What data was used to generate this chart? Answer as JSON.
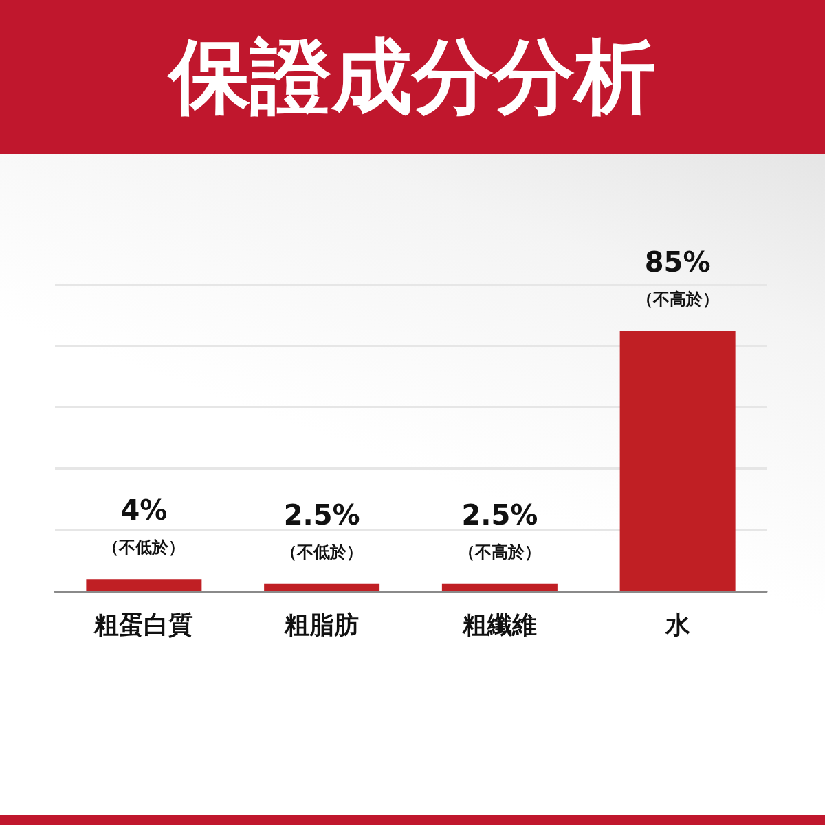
{
  "chart_data": {
    "type": "bar",
    "title": "保證成分分析",
    "categories": [
      "粗蛋白質",
      "粗脂肪",
      "粗纖維",
      "水"
    ],
    "values": [
      4,
      2.5,
      2.5,
      85
    ],
    "color": "#c01f24",
    "value_labels": [
      "4%",
      "2.5%",
      "2.5%",
      "85%"
    ],
    "annotations": [
      {
        "text": "（不低於）",
        "x": "粗蛋白質",
        "y": 4
      },
      {
        "text": "（不低於）",
        "x": "粗脂肪",
        "y": 2.5
      },
      {
        "text": "（不高於）",
        "x": "粗纖維",
        "y": 2.5
      },
      {
        "text": "（不高於）",
        "x": "水",
        "y": 85
      }
    ],
    "grid": "y"
  }
}
